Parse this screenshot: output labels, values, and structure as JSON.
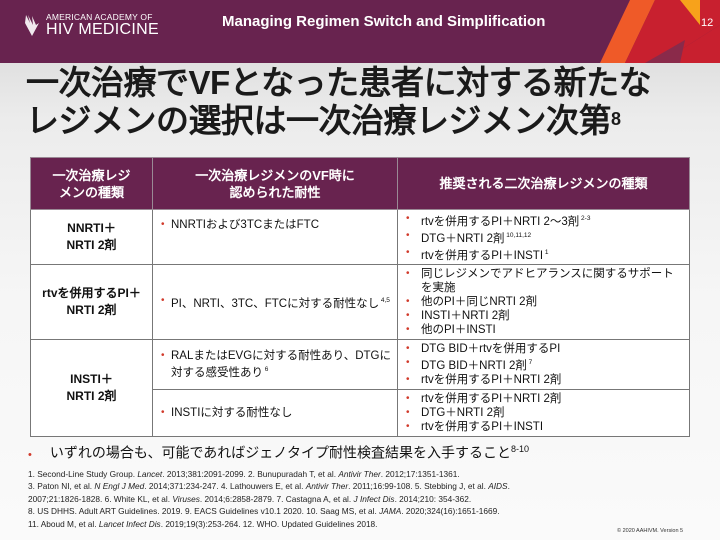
{
  "header": {
    "org_line1": "AMERICAN ACADEMY OF",
    "org_line2": "HIV MEDICINE",
    "title": "Managing Regimen Switch and Simplification",
    "slide_number": "12",
    "colors": {
      "brand": "#68234f",
      "accent_orange": "#ef5a28",
      "accent_red": "#c8202f",
      "accent_yellow": "#f7a21b"
    }
  },
  "title": {
    "line1": "一次治療でVFとなった患者に対する新たな",
    "line2": "レジメンの選択は一次治療レジメン次第",
    "sup": "8"
  },
  "table": {
    "headers": [
      "一次治療レジメンの種類",
      "一次治療レジメンのVF時に認められた耐性",
      "推奨される二次治療レジメンの種類"
    ],
    "rows": [
      {
        "regimen": [
          "NNRTI＋",
          "NRTI 2剤"
        ],
        "resistance": [
          {
            "text": "NNRTIおよび3TCまたはFTC",
            "sup": ""
          }
        ],
        "recommended": [
          {
            "text": "rtvを併用するPI＋NRTI 2～3剤",
            "sup": "2-3"
          },
          {
            "text": "DTG＋NRTI 2剤",
            "sup": "10,11,12"
          },
          {
            "text": "rtvを併用するPI＋INSTI",
            "sup": "1"
          }
        ]
      },
      {
        "regimen": [
          "rtvを併用するPI＋",
          "NRTI 2剤"
        ],
        "resistance": [
          {
            "text": "PI、NRTI、3TC、FTCに対する耐性なし",
            "sup": "4,5"
          }
        ],
        "recommended": [
          {
            "text": "同じレジメンでアドヒアランスに関するサポートを実施",
            "sup": ""
          },
          {
            "text": "他のPI＋同じNRTI 2剤",
            "sup": ""
          },
          {
            "text": "INSTI＋NRTI 2剤",
            "sup": ""
          },
          {
            "text": "他のPI＋INSTI",
            "sup": ""
          }
        ]
      },
      {
        "regimen": [
          "INSTI＋",
          "NRTI 2剤"
        ],
        "resistance": [
          {
            "text": "RALまたはEVGに対する耐性あり、DTGに対する感受性あり",
            "sup": "6"
          }
        ],
        "recommended": [
          {
            "text": "DTG BID＋rtvを併用するPI",
            "sup": ""
          },
          {
            "text": "DTG BID＋NRTI 2剤",
            "sup": "7"
          },
          {
            "text": "rtvを併用するPI＋NRTI 2剤",
            "sup": ""
          }
        ]
      },
      {
        "resistance": [
          {
            "text": "INSTIに対する耐性なし",
            "sup": ""
          }
        ],
        "recommended": [
          {
            "text": "rtvを併用するPI＋NRTI 2剤",
            "sup": ""
          },
          {
            "text": "DTG＋NRTI 2剤",
            "sup": ""
          },
          {
            "text": "rtvを併用するPI＋INSTI",
            "sup": ""
          }
        ]
      }
    ]
  },
  "note": {
    "text": "いずれの場合も、可能であればジェノタイプ耐性検査結果を入手すること",
    "sup": "8-10"
  },
  "references": [
    [
      [
        "1. Second-Line Study Group. ",
        0
      ],
      [
        "Lancet",
        1
      ],
      [
        ". 2013;381:2091-2099. 2. Bunupuradah T, et al. ",
        0
      ],
      [
        "Antivir Ther",
        1
      ],
      [
        ". 2012;17:1351-1361.",
        0
      ]
    ],
    [
      [
        "3. Paton NI, et al. ",
        0
      ],
      [
        "N Engl J Med",
        1
      ],
      [
        ". 2014;371:234-247. 4. Lathouwers E, et al. ",
        0
      ],
      [
        "Antivir Ther",
        1
      ],
      [
        ". 2011;16:99-108. 5. Stebbing J, et al. ",
        0
      ],
      [
        "AIDS",
        1
      ],
      [
        ".",
        0
      ]
    ],
    [
      [
        "2007;21:1826-1828. 6. White KL, et al. ",
        0
      ],
      [
        "Viruses",
        1
      ],
      [
        ". 2014;6:2858-2879. 7. Castagna A, et al. ",
        0
      ],
      [
        "J Infect Dis",
        1
      ],
      [
        ". 2014;210: 354-362.",
        0
      ]
    ],
    [
      [
        "8. US DHHS. Adult ART Guidelines. 2019. 9. EACS Guidelines v10.1 2020. 10. Saag MS, et al. ",
        0
      ],
      [
        "JAMA",
        1
      ],
      [
        ". 2020;324(16):1651-1669.",
        0
      ]
    ],
    [
      [
        "11. Aboud M, et al. ",
        0
      ],
      [
        "Lancet Infect Dis",
        1
      ],
      [
        ". 2019;19(3):253-264. 12. WHO. Updated Guidelines 2018.",
        0
      ]
    ]
  ],
  "copyright": "© 2020 AAHIVM. Version 5"
}
